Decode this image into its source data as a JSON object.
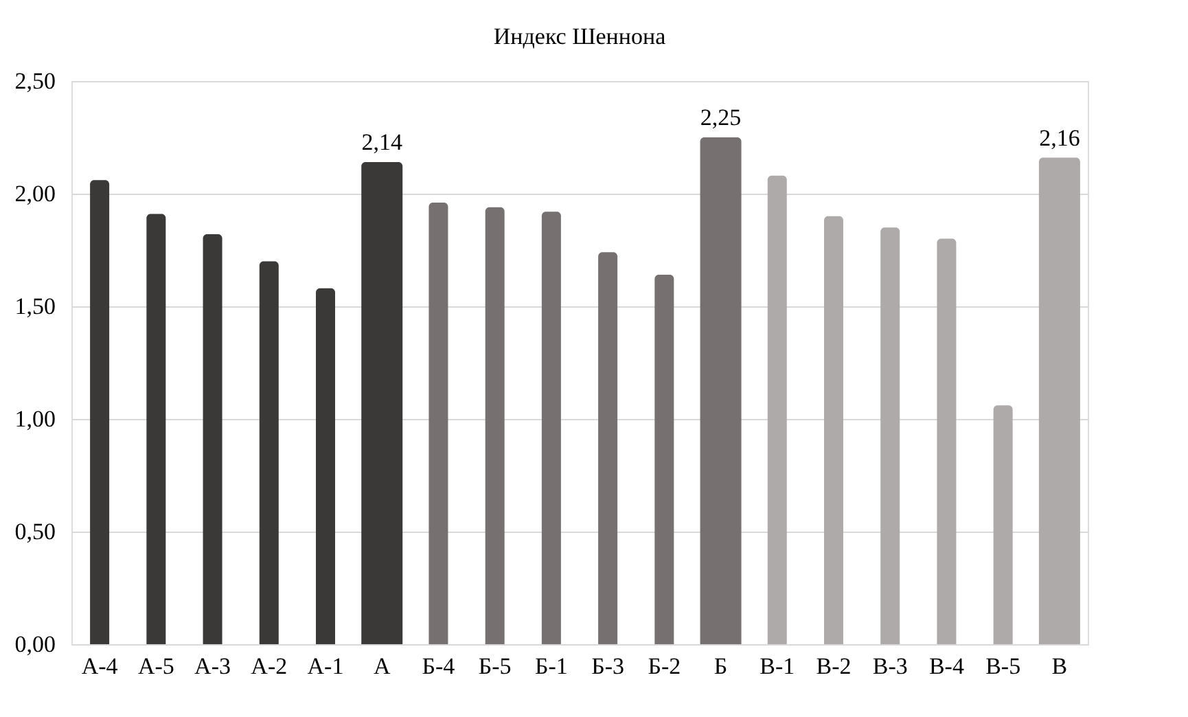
{
  "chart_data": {
    "type": "bar",
    "title": "Индекс Шеннона",
    "categories": [
      "А-4",
      "А-5",
      "А-3",
      "А-2",
      "А-1",
      "А",
      "Б-4",
      "Б-5",
      "Б-1",
      "Б-3",
      "Б-2",
      "Б",
      "В-1",
      "В-2",
      "В-3",
      "В-4",
      "В-5",
      "В"
    ],
    "values": [
      2.06,
      1.91,
      1.82,
      1.7,
      1.58,
      2.14,
      1.96,
      1.94,
      1.92,
      1.74,
      1.64,
      2.25,
      2.08,
      1.9,
      1.85,
      1.8,
      1.06,
      2.16
    ],
    "value_labels": [
      null,
      null,
      null,
      null,
      null,
      "2,14",
      null,
      null,
      null,
      null,
      null,
      "2,25",
      null,
      null,
      null,
      null,
      null,
      "2,16"
    ],
    "colors": [
      "#3a3938",
      "#3a3938",
      "#3a3938",
      "#3a3938",
      "#3a3938",
      "#3a3938",
      "#767170",
      "#767170",
      "#767170",
      "#767170",
      "#767170",
      "#767170",
      "#aeaaa9",
      "#aeaaa9",
      "#aeaaa9",
      "#aeaaa9",
      "#aeaaa9",
      "#aeaaa9"
    ],
    "ylim": [
      0,
      2.5
    ],
    "yticks": [
      {
        "value": 0,
        "label": "0,00"
      },
      {
        "value": 0.5,
        "label": "0,50"
      },
      {
        "value": 1,
        "label": "1,00"
      },
      {
        "value": 1.5,
        "label": "1,50"
      },
      {
        "value": 2,
        "label": "2,00"
      },
      {
        "value": 2.5,
        "label": "2,50"
      }
    ],
    "grid": "y"
  }
}
